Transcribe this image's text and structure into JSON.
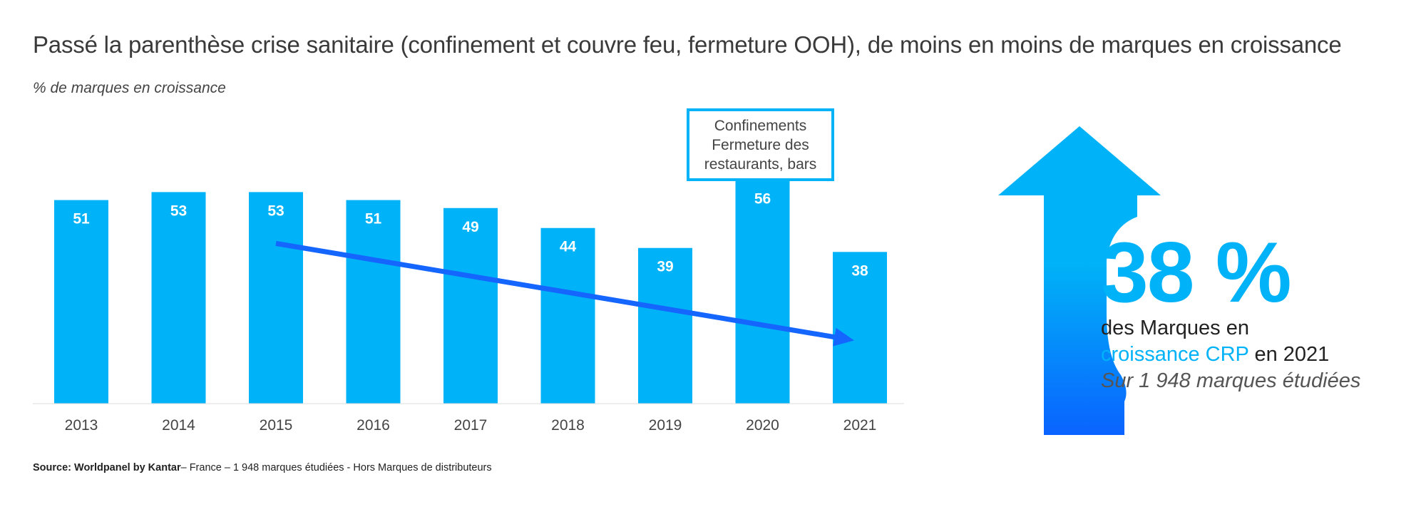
{
  "title": "Passé la parenthèse crise sanitaire (confinement et couvre feu, fermeture OOH), de moins en moins de marques en croissance",
  "subtitle": "% de marques en croissance",
  "annotation": {
    "lines": [
      "Confinements",
      "Fermeture des",
      "restaurants, bars"
    ],
    "border_color": "#00b2f7"
  },
  "kpi": {
    "value": "38 %",
    "line1": "des Marques en",
    "line2_highlight": "croissance CRP",
    "line2_rest": " en 2021",
    "note": "Sur 1 948 marques étudiées"
  },
  "source": {
    "bold": "Source: Worldpanel by Kantar",
    "rest": "– France – 1 948 marques étudiées - Hors Marques de distributeurs"
  },
  "colors": {
    "bar": "#00b2f7",
    "trend_arrow": "#1565ff",
    "big_arrow_top": "#00b2f7",
    "big_arrow_bottom": "#0a63ff",
    "axis": "#dddddd"
  },
  "icons": [
    "trend-down-arrow",
    "big-up-arrow"
  ],
  "chart_data": {
    "type": "bar",
    "categories": [
      "2013",
      "2014",
      "2015",
      "2016",
      "2017",
      "2018",
      "2019",
      "2020",
      "2021"
    ],
    "values": [
      51,
      53,
      53,
      51,
      49,
      44,
      39,
      56,
      38
    ],
    "title": "",
    "xlabel": "",
    "ylabel": "% de marques en croissance",
    "ylim": [
      0,
      62
    ],
    "grid": false,
    "data_labels": true,
    "trend_line": {
      "from": "2015",
      "to": "2021",
      "direction": "down"
    }
  }
}
